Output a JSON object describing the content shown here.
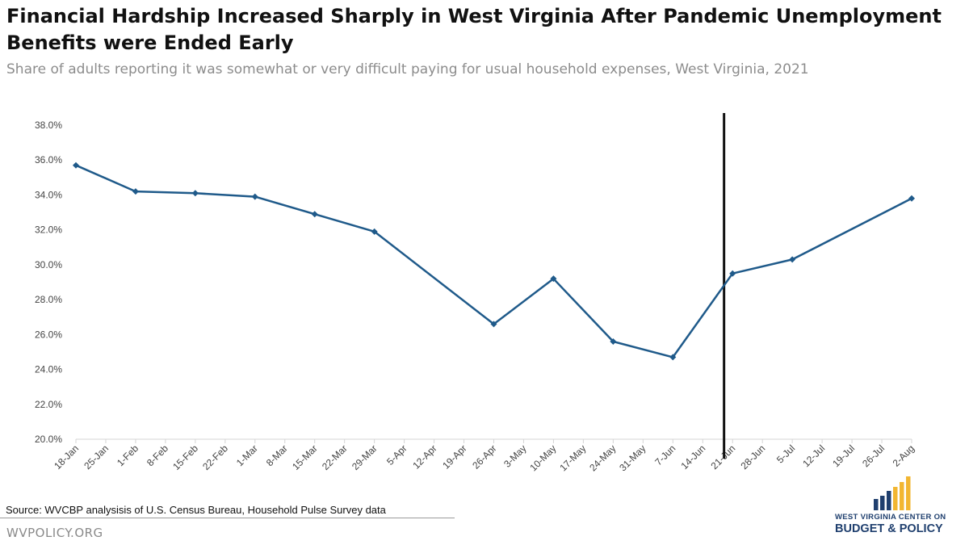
{
  "header": {
    "title": "Financial Hardship Increased Sharply in West Virginia After Pandemic Unemployment Benefits were Ended Early",
    "subtitle": "Share of adults reporting it was somewhat or very difficult paying for usual household expenses, West Virginia, 2021"
  },
  "footer": {
    "source": "Source:  WVCBP analysisis of U.S. Census Bureau, Household Pulse Survey data",
    "site": "WVPOLICY.ORG",
    "logo_line1": "WEST VIRGINIA CENTER ON",
    "logo_line2": "BUDGET & POLICY"
  },
  "colors": {
    "series": "#1f5a8a",
    "marker_line": "#111111",
    "logo_blue": "#1f3f6e",
    "logo_gold": "#f2b631"
  },
  "chart_data": {
    "type": "line",
    "x_categories": [
      "18-Jan",
      "25-Jan",
      "1-Feb",
      "8-Feb",
      "15-Feb",
      "22-Feb",
      "1-Mar",
      "8-Mar",
      "15-Mar",
      "22-Mar",
      "29-Mar",
      "5-Apr",
      "12-Apr",
      "19-Apr",
      "26-Apr",
      "3-May",
      "10-May",
      "17-May",
      "24-May",
      "31-May",
      "7-Jun",
      "14-Jun",
      "21-Jun",
      "28-Jun",
      "5-Jul",
      "12-Jul",
      "19-Jul",
      "26-Jul",
      "2-Aug"
    ],
    "series": [
      {
        "name": "",
        "points": [
          {
            "x": "18-Jan",
            "y": 35.7
          },
          {
            "x": "1-Feb",
            "y": 34.2
          },
          {
            "x": "15-Feb",
            "y": 34.1
          },
          {
            "x": "1-Mar",
            "y": 33.9
          },
          {
            "x": "15-Mar",
            "y": 32.9
          },
          {
            "x": "29-Mar",
            "y": 31.9
          },
          {
            "x": "26-Apr",
            "y": 26.6
          },
          {
            "x": "10-May",
            "y": 29.2
          },
          {
            "x": "24-May",
            "y": 25.6
          },
          {
            "x": "7-Jun",
            "y": 24.7
          },
          {
            "x": "21-Jun",
            "y": 29.5
          },
          {
            "x": "5-Jul",
            "y": 30.3
          },
          {
            "x": "2-Aug",
            "y": 33.8
          }
        ]
      }
    ],
    "y_ticks": [
      "20.0%",
      "22.0%",
      "24.0%",
      "26.0%",
      "28.0%",
      "30.0%",
      "32.0%",
      "34.0%",
      "36.0%",
      "38.0%"
    ],
    "ylim": [
      20,
      38
    ],
    "y_unit": "%",
    "vertical_marker_at": "19-Jun",
    "grid": false,
    "xlabel": "",
    "ylabel": ""
  }
}
